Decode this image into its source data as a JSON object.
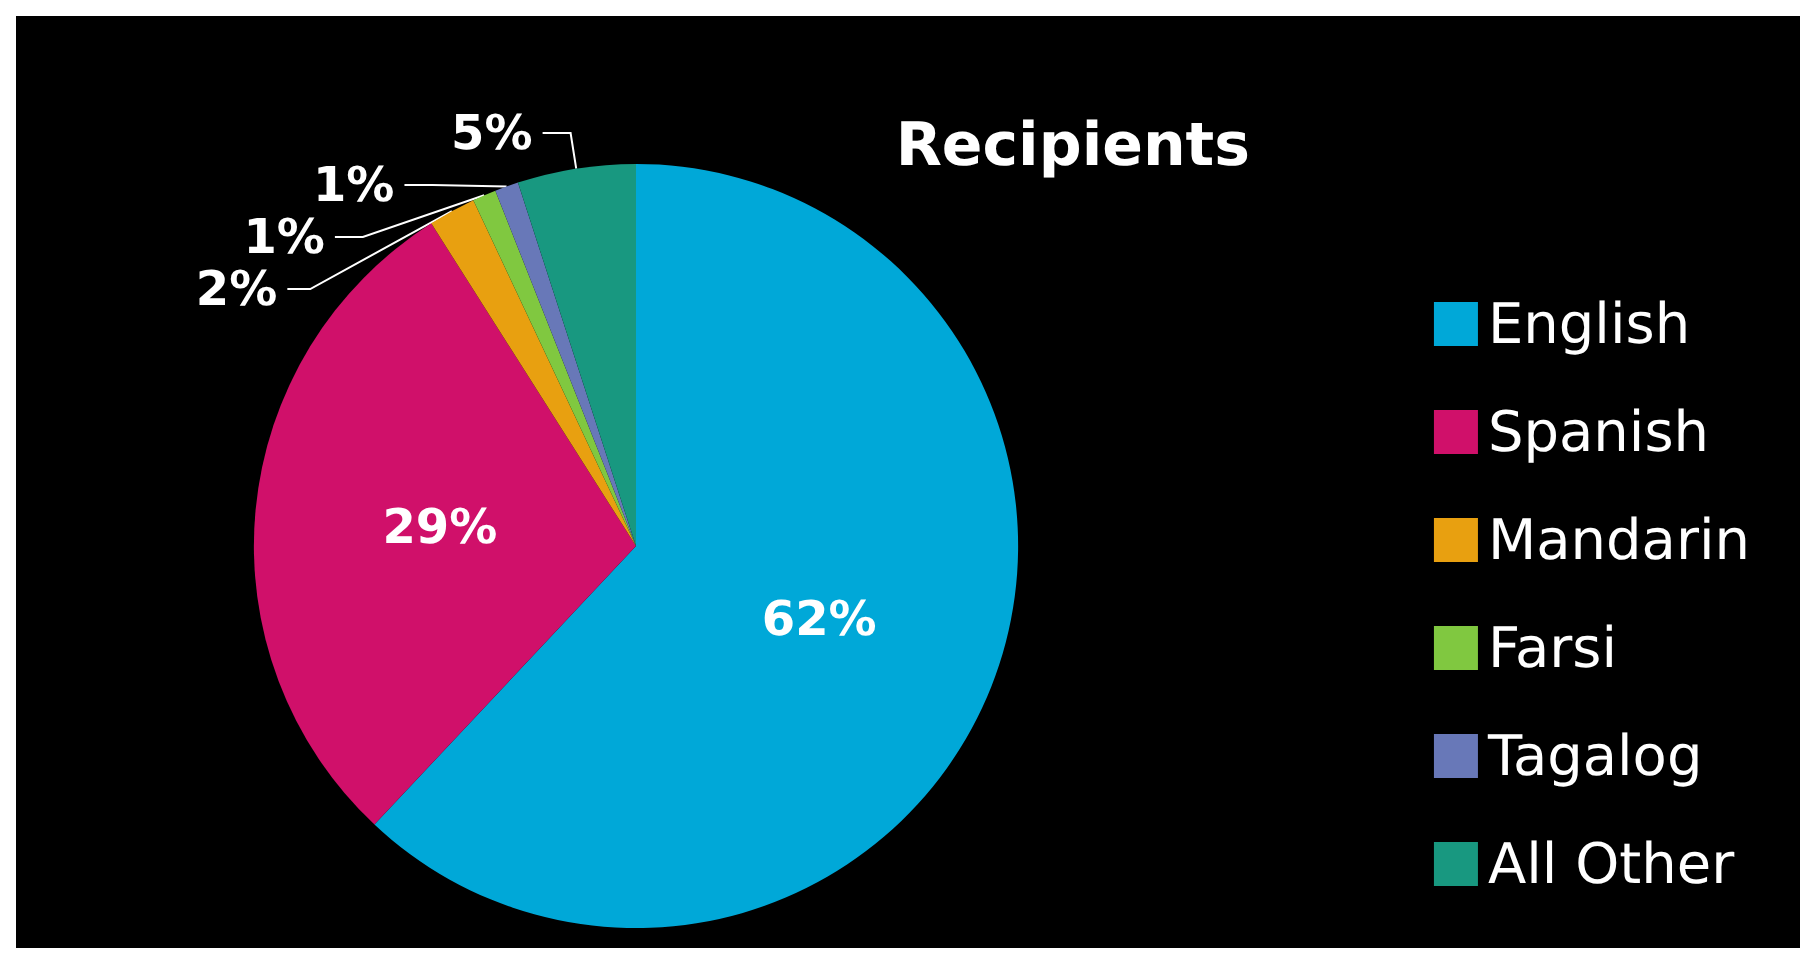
{
  "chart_data": {
    "type": "pie",
    "title": "Recipients",
    "categories": [
      "English",
      "Spanish",
      "Mandarin",
      "Farsi",
      "Tagalog",
      "All Other"
    ],
    "values": [
      62,
      29,
      2,
      1,
      1,
      5
    ],
    "value_labels": [
      "62%",
      "29%",
      "2%",
      "1%",
      "1%",
      "5%"
    ],
    "colors": [
      "#00a8d8",
      "#d0106a",
      "#e8a010",
      "#80c840",
      "#6878b8",
      "#189880"
    ],
    "legend": "right"
  }
}
